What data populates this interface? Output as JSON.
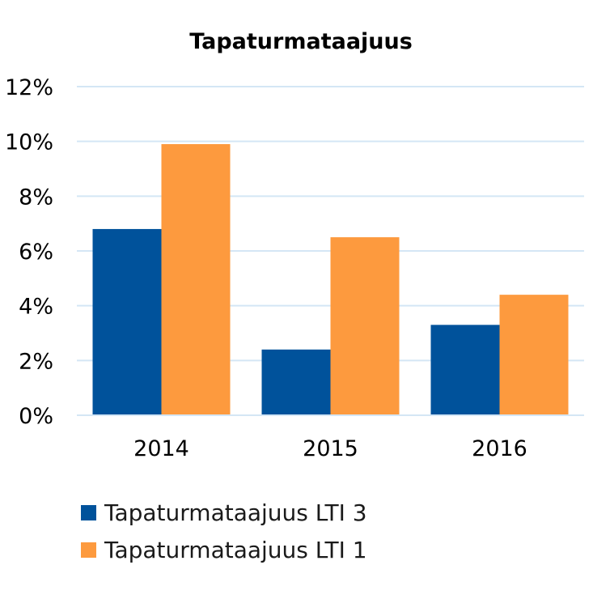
{
  "chart_data": {
    "type": "bar",
    "title": "Tapaturmataajuus",
    "categories": [
      "2014",
      "2015",
      "2016"
    ],
    "series": [
      {
        "name": "Tapaturmataajuus LTI 3",
        "color": "#00529b",
        "values": [
          6.8,
          2.4,
          3.3
        ]
      },
      {
        "name": "Tapaturmataajuus LTI 1",
        "color": "#fd9a3e",
        "values": [
          9.9,
          6.5,
          4.4
        ]
      }
    ],
    "yticks": [
      "0%",
      "2%",
      "4%",
      "6%",
      "8%",
      "10%",
      "12%"
    ],
    "ylim": [
      0,
      12
    ],
    "xlabel": "",
    "ylabel": "",
    "grid": true,
    "grid_color": "#d4e6f5",
    "legend_position": "bottom"
  }
}
